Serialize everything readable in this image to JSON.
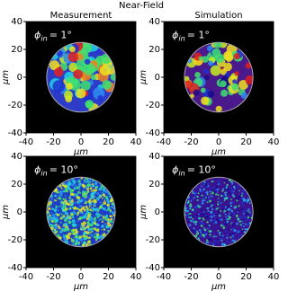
{
  "title": "Near-Field",
  "column_titles": [
    "Measurement",
    "Simulation"
  ],
  "chart_data": [
    {
      "type": "heatmap",
      "annotation": {
        "symbol": "ϕ",
        "sub": "in",
        "text": "= 1°"
      },
      "xlabel": "μm",
      "ylabel": "μm",
      "xlim": [
        -40,
        40
      ],
      "ylim": [
        -40,
        40
      ],
      "xticks": [
        -40,
        -20,
        0,
        20,
        40
      ],
      "yticks": [
        -40,
        -20,
        0,
        20,
        40
      ]
    },
    {
      "type": "heatmap",
      "annotation": {
        "symbol": "ϕ",
        "sub": "in",
        "text": "= 1°"
      },
      "xlabel": "μm",
      "ylabel": "μm",
      "xlim": [
        -40,
        40
      ],
      "ylim": [
        -40,
        40
      ],
      "xticks": [
        -40,
        -20,
        0,
        20,
        40
      ],
      "yticks": [
        -40,
        -20,
        0,
        20,
        40
      ]
    },
    {
      "type": "heatmap",
      "annotation": {
        "symbol": "ϕ",
        "sub": "in",
        "text": "= 10°"
      },
      "xlabel": "μm",
      "ylabel": "μm",
      "xlim": [
        -40,
        40
      ],
      "ylim": [
        -40,
        40
      ],
      "xticks": [
        -40,
        -20,
        0,
        20,
        40
      ],
      "yticks": [
        -40,
        -20,
        0,
        20,
        40
      ]
    },
    {
      "type": "heatmap",
      "annotation": {
        "symbol": "ϕ",
        "sub": "in",
        "text": "= 10°"
      },
      "xlabel": "μm",
      "ylabel": "μm",
      "xlim": [
        -40,
        40
      ],
      "ylim": [
        -40,
        40
      ],
      "xticks": [
        -40,
        -20,
        0,
        20,
        40
      ],
      "yticks": [
        -40,
        -20,
        0,
        20,
        40
      ]
    }
  ]
}
